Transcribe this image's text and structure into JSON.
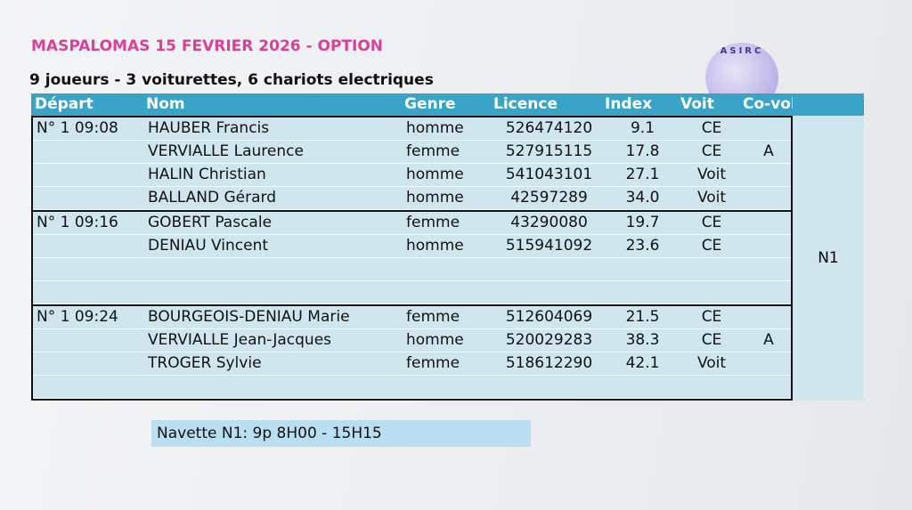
{
  "header": {
    "title": "MASPALOMAS 15 FEVRIER 2026 - OPTION",
    "logo_text": "ASIRC",
    "subtitle": "9 joueurs - 3 voiturettes, 6 chariots electriques"
  },
  "table": {
    "columns": [
      "Départ",
      "Nom",
      "Genre",
      "Licence",
      "Index",
      "Voit",
      "Co-volonne"
    ],
    "shuttle": "N1",
    "groups": [
      {
        "depart": "N° 1 09:08",
        "players": [
          {
            "nom": "HAUBER Francis",
            "genre": "homme",
            "licence": "526474120",
            "index": "9.1",
            "voit": "CE"
          },
          {
            "nom": "VERVIALLE Laurence",
            "genre": "femme",
            "licence": "527915115",
            "index": "17.8",
            "voit": "CE",
            "co": "A"
          },
          {
            "nom": "HALIN Christian",
            "genre": "homme",
            "licence": "541043101",
            "index": "27.1",
            "voit": "Voit"
          },
          {
            "nom": "BALLAND Gérard",
            "genre": "homme",
            "licence": "42597289",
            "index": "34.0",
            "voit": "Voit"
          }
        ]
      },
      {
        "depart": "N° 1 09:16",
        "players": [
          {
            "nom": "GOBERT Pascale",
            "genre": "femme",
            "licence": "43290080",
            "index": "19.7",
            "voit": "CE"
          },
          {
            "nom": "DENIAU Vincent",
            "genre": "homme",
            "licence": "515941092",
            "index": "23.6",
            "voit": "CE"
          }
        ]
      },
      {
        "depart": "N° 1 09:24",
        "players": [
          {
            "nom": "BOURGEOIS-DENIAU Marie",
            "genre": "femme",
            "licence": "512604069",
            "index": "21.5",
            "voit": "CE"
          },
          {
            "nom": "VERVIALLE Jean-Jacques",
            "genre": "homme",
            "licence": "520029283",
            "index": "38.3",
            "voit": "CE",
            "co": "A"
          },
          {
            "nom": "TROGER Sylvie",
            "genre": "femme",
            "licence": "518612290",
            "index": "42.1",
            "voit": "Voit"
          }
        ]
      }
    ]
  },
  "footer": {
    "navette": "Navette N1: 9p  8H00 - 15H15"
  }
}
